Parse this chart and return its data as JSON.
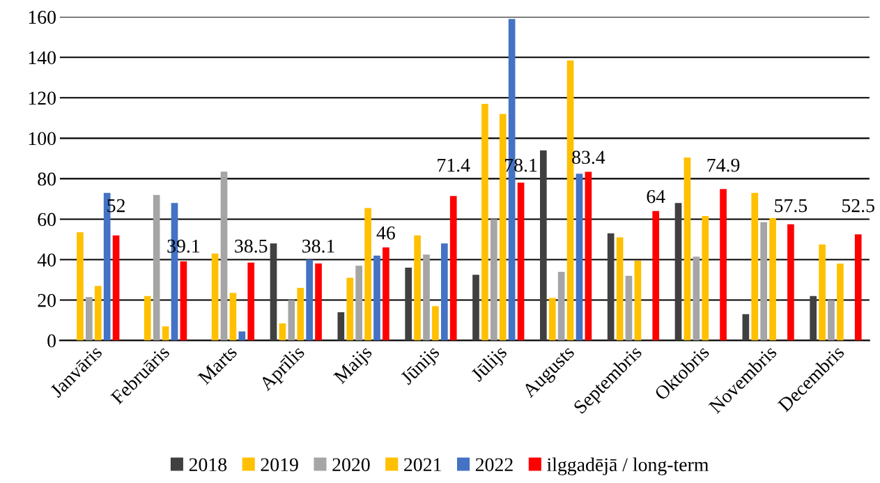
{
  "chart_data": {
    "type": "bar",
    "categories": [
      "Janvāris",
      "Februāris",
      "Marts",
      "Aprīlis",
      "Maijs",
      "Jūnijs",
      "Jūlijs",
      "Augusts",
      "Septembris",
      "Oktobris",
      "Novembris",
      "Decembris"
    ],
    "series": [
      {
        "name": "2018",
        "color": "#404040",
        "values": [
          null,
          null,
          null,
          48,
          14,
          36,
          32.5,
          94,
          53,
          68,
          13,
          22
        ]
      },
      {
        "name": "2019",
        "color": "#ffc000",
        "values": [
          53.5,
          22,
          43,
          8.5,
          31,
          52,
          117,
          21,
          51,
          90.5,
          73,
          47.5
        ]
      },
      {
        "name": "2020",
        "color": "#a5a5a5",
        "values": [
          21.5,
          72,
          83.5,
          20,
          37,
          42.5,
          60,
          34,
          32,
          41.5,
          58.5,
          20
        ]
      },
      {
        "name": "2021",
        "color": "#ffc000",
        "values": [
          27,
          7,
          23.5,
          26,
          65.5,
          17,
          112,
          138.5,
          39.5,
          61.5,
          60.5,
          38
        ]
      },
      {
        "name": "2022",
        "color": "#4472c4",
        "values": [
          73,
          68,
          4.5,
          40,
          42,
          48,
          159,
          82.5,
          null,
          null,
          null,
          null
        ]
      },
      {
        "name": "ilggadējā / long-term",
        "color": "#ff0000",
        "values": [
          52,
          39.1,
          38.5,
          38.1,
          46,
          71.4,
          78.1,
          83.4,
          64,
          74.9,
          57.5,
          52.5
        ],
        "value_labels": [
          "52",
          "39.1",
          "38.5",
          "38.1",
          "46",
          "71.4",
          "78.1",
          "83.4",
          "64",
          "74.9",
          "57.5",
          "52.5"
        ]
      }
    ],
    "ylim": [
      0,
      160
    ],
    "yticks": [
      0,
      20,
      40,
      60,
      80,
      100,
      120,
      140,
      160
    ],
    "grid": "y",
    "legend": "bottom"
  }
}
